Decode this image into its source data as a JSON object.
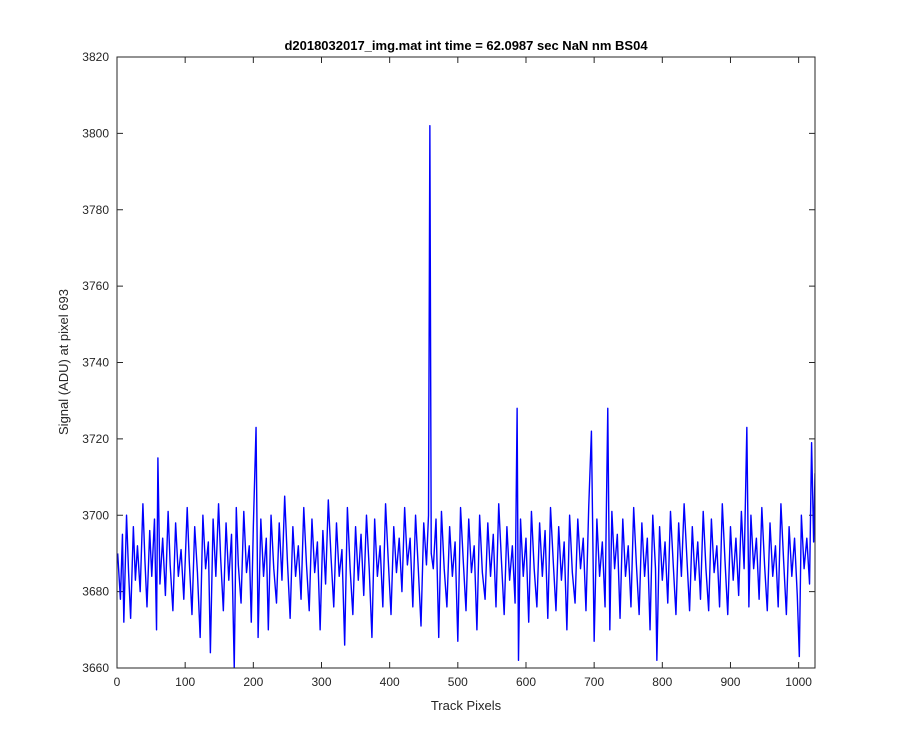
{
  "chart_data": {
    "type": "line",
    "title": "d2018032017_img.mat int time = 62.0987 sec  NaN nm BS04",
    "xlabel": "Track Pixels",
    "ylabel": "Signal (ADU) at pixel 693",
    "xlim": [
      0,
      1024
    ],
    "ylim": [
      3660,
      3820
    ],
    "xticks": [
      0,
      100,
      200,
      300,
      400,
      500,
      600,
      700,
      800,
      900,
      1000
    ],
    "yticks": [
      3660,
      3680,
      3700,
      3720,
      3740,
      3760,
      3780,
      3800,
      3820
    ],
    "grid": false,
    "legend": "none",
    "series_color": "#0000ff",
    "series": [
      {
        "points": [
          [
            1,
            3690
          ],
          [
            5,
            3678
          ],
          [
            8,
            3695
          ],
          [
            10,
            3672
          ],
          [
            14,
            3700
          ],
          [
            17,
            3685
          ],
          [
            20,
            3673
          ],
          [
            24,
            3697
          ],
          [
            27,
            3683
          ],
          [
            30,
            3692
          ],
          [
            34,
            3680
          ],
          [
            38,
            3703
          ],
          [
            41,
            3688
          ],
          [
            44,
            3676
          ],
          [
            48,
            3696
          ],
          [
            51,
            3684
          ],
          [
            55,
            3699
          ],
          [
            58,
            3670
          ],
          [
            60,
            3715
          ],
          [
            63,
            3682
          ],
          [
            67,
            3694
          ],
          [
            71,
            3679
          ],
          [
            75,
            3701
          ],
          [
            78,
            3687
          ],
          [
            82,
            3675
          ],
          [
            86,
            3698
          ],
          [
            90,
            3684
          ],
          [
            94,
            3691
          ],
          [
            98,
            3678
          ],
          [
            103,
            3702
          ],
          [
            106,
            3688
          ],
          [
            110,
            3674
          ],
          [
            114,
            3697
          ],
          [
            118,
            3685
          ],
          [
            122,
            3668
          ],
          [
            126,
            3700
          ],
          [
            130,
            3686
          ],
          [
            134,
            3693
          ],
          [
            137,
            3664
          ],
          [
            141,
            3699
          ],
          [
            145,
            3684
          ],
          [
            149,
            3703
          ],
          [
            152,
            3689
          ],
          [
            156,
            3675
          ],
          [
            160,
            3698
          ],
          [
            164,
            3683
          ],
          [
            168,
            3695
          ],
          [
            172,
            3660
          ],
          [
            175,
            3702
          ],
          [
            178,
            3687
          ],
          [
            182,
            3677
          ],
          [
            186,
            3701
          ],
          [
            190,
            3685
          ],
          [
            194,
            3692
          ],
          [
            197,
            3672
          ],
          [
            200,
            3697
          ],
          [
            204,
            3723
          ],
          [
            207,
            3668
          ],
          [
            211,
            3699
          ],
          [
            215,
            3684
          ],
          [
            219,
            3694
          ],
          [
            222,
            3670
          ],
          [
            226,
            3700
          ],
          [
            230,
            3686
          ],
          [
            234,
            3677
          ],
          [
            238,
            3698
          ],
          [
            242,
            3683
          ],
          [
            246,
            3705
          ],
          [
            250,
            3688
          ],
          [
            254,
            3673
          ],
          [
            258,
            3697
          ],
          [
            262,
            3684
          ],
          [
            266,
            3692
          ],
          [
            270,
            3678
          ],
          [
            274,
            3702
          ],
          [
            278,
            3687
          ],
          [
            282,
            3675
          ],
          [
            286,
            3699
          ],
          [
            290,
            3685
          ],
          [
            294,
            3693
          ],
          [
            298,
            3670
          ],
          [
            302,
            3696
          ],
          [
            306,
            3682
          ],
          [
            310,
            3704
          ],
          [
            314,
            3689
          ],
          [
            318,
            3676
          ],
          [
            322,
            3698
          ],
          [
            326,
            3684
          ],
          [
            330,
            3691
          ],
          [
            334,
            3666
          ],
          [
            338,
            3702
          ],
          [
            342,
            3686
          ],
          [
            346,
            3674
          ],
          [
            350,
            3697
          ],
          [
            354,
            3683
          ],
          [
            358,
            3695
          ],
          [
            362,
            3679
          ],
          [
            366,
            3700
          ],
          [
            370,
            3686
          ],
          [
            374,
            3668
          ],
          [
            378,
            3699
          ],
          [
            382,
            3684
          ],
          [
            386,
            3692
          ],
          [
            390,
            3676
          ],
          [
            394,
            3703
          ],
          [
            398,
            3688
          ],
          [
            402,
            3674
          ],
          [
            406,
            3697
          ],
          [
            410,
            3685
          ],
          [
            414,
            3694
          ],
          [
            418,
            3680
          ],
          [
            422,
            3702
          ],
          [
            426,
            3687
          ],
          [
            430,
            3694
          ],
          [
            434,
            3676
          ],
          [
            438,
            3700
          ],
          [
            442,
            3686
          ],
          [
            446,
            3671
          ],
          [
            450,
            3698
          ],
          [
            454,
            3687
          ],
          [
            457,
            3700
          ],
          [
            459,
            3802
          ],
          [
            461,
            3690
          ],
          [
            464,
            3686
          ],
          [
            468,
            3699
          ],
          [
            472,
            3668
          ],
          [
            476,
            3701
          ],
          [
            480,
            3686
          ],
          [
            484,
            3676
          ],
          [
            488,
            3697
          ],
          [
            492,
            3684
          ],
          [
            496,
            3693
          ],
          [
            500,
            3667
          ],
          [
            504,
            3702
          ],
          [
            508,
            3688
          ],
          [
            512,
            3675
          ],
          [
            516,
            3699
          ],
          [
            520,
            3685
          ],
          [
            524,
            3692
          ],
          [
            528,
            3670
          ],
          [
            532,
            3700
          ],
          [
            536,
            3685
          ],
          [
            540,
            3678
          ],
          [
            544,
            3698
          ],
          [
            548,
            3684
          ],
          [
            552,
            3695
          ],
          [
            556,
            3676
          ],
          [
            560,
            3703
          ],
          [
            564,
            3688
          ],
          [
            568,
            3674
          ],
          [
            572,
            3697
          ],
          [
            576,
            3683
          ],
          [
            580,
            3692
          ],
          [
            584,
            3677
          ],
          [
            587,
            3728
          ],
          [
            589,
            3662
          ],
          [
            592,
            3699
          ],
          [
            596,
            3684
          ],
          [
            600,
            3694
          ],
          [
            604,
            3672
          ],
          [
            608,
            3701
          ],
          [
            612,
            3686
          ],
          [
            616,
            3676
          ],
          [
            620,
            3698
          ],
          [
            624,
            3684
          ],
          [
            628,
            3696
          ],
          [
            632,
            3673
          ],
          [
            636,
            3702
          ],
          [
            640,
            3688
          ],
          [
            644,
            3675
          ],
          [
            648,
            3697
          ],
          [
            652,
            3683
          ],
          [
            656,
            3693
          ],
          [
            660,
            3670
          ],
          [
            664,
            3700
          ],
          [
            668,
            3685
          ],
          [
            672,
            3677
          ],
          [
            676,
            3699
          ],
          [
            680,
            3686
          ],
          [
            684,
            3694
          ],
          [
            688,
            3675
          ],
          [
            692,
            3702
          ],
          [
            696,
            3722
          ],
          [
            700,
            3667
          ],
          [
            704,
            3699
          ],
          [
            708,
            3684
          ],
          [
            712,
            3693
          ],
          [
            716,
            3676
          ],
          [
            720,
            3728
          ],
          [
            723,
            3670
          ],
          [
            726,
            3701
          ],
          [
            730,
            3686
          ],
          [
            734,
            3695
          ],
          [
            738,
            3673
          ],
          [
            742,
            3699
          ],
          [
            746,
            3684
          ],
          [
            750,
            3692
          ],
          [
            754,
            3676
          ],
          [
            758,
            3702
          ],
          [
            762,
            3687
          ],
          [
            766,
            3674
          ],
          [
            770,
            3698
          ],
          [
            774,
            3684
          ],
          [
            778,
            3694
          ],
          [
            782,
            3670
          ],
          [
            786,
            3700
          ],
          [
            790,
            3686
          ],
          [
            792,
            3662
          ],
          [
            796,
            3697
          ],
          [
            800,
            3683
          ],
          [
            804,
            3693
          ],
          [
            808,
            3677
          ],
          [
            812,
            3701
          ],
          [
            816,
            3687
          ],
          [
            820,
            3674
          ],
          [
            824,
            3698
          ],
          [
            828,
            3684
          ],
          [
            832,
            3703
          ],
          [
            836,
            3689
          ],
          [
            840,
            3675
          ],
          [
            844,
            3697
          ],
          [
            848,
            3683
          ],
          [
            852,
            3693
          ],
          [
            856,
            3678
          ],
          [
            860,
            3701
          ],
          [
            864,
            3686
          ],
          [
            868,
            3675
          ],
          [
            872,
            3699
          ],
          [
            876,
            3685
          ],
          [
            880,
            3692
          ],
          [
            884,
            3676
          ],
          [
            888,
            3703
          ],
          [
            892,
            3688
          ],
          [
            896,
            3674
          ],
          [
            900,
            3697
          ],
          [
            904,
            3683
          ],
          [
            908,
            3694
          ],
          [
            912,
            3679
          ],
          [
            916,
            3701
          ],
          [
            920,
            3686
          ],
          [
            924,
            3723
          ],
          [
            927,
            3676
          ],
          [
            930,
            3700
          ],
          [
            934,
            3686
          ],
          [
            938,
            3694
          ],
          [
            942,
            3678
          ],
          [
            946,
            3702
          ],
          [
            950,
            3687
          ],
          [
            954,
            3675
          ],
          [
            958,
            3698
          ],
          [
            962,
            3684
          ],
          [
            966,
            3692
          ],
          [
            970,
            3676
          ],
          [
            974,
            3703
          ],
          [
            978,
            3688
          ],
          [
            982,
            3674
          ],
          [
            986,
            3697
          ],
          [
            990,
            3684
          ],
          [
            994,
            3694
          ],
          [
            998,
            3679
          ],
          [
            1001,
            3663
          ],
          [
            1004,
            3700
          ],
          [
            1008,
            3686
          ],
          [
            1012,
            3694
          ],
          [
            1016,
            3682
          ],
          [
            1019,
            3719
          ],
          [
            1022,
            3693
          ],
          [
            1024,
            3711
          ]
        ]
      }
    ]
  }
}
